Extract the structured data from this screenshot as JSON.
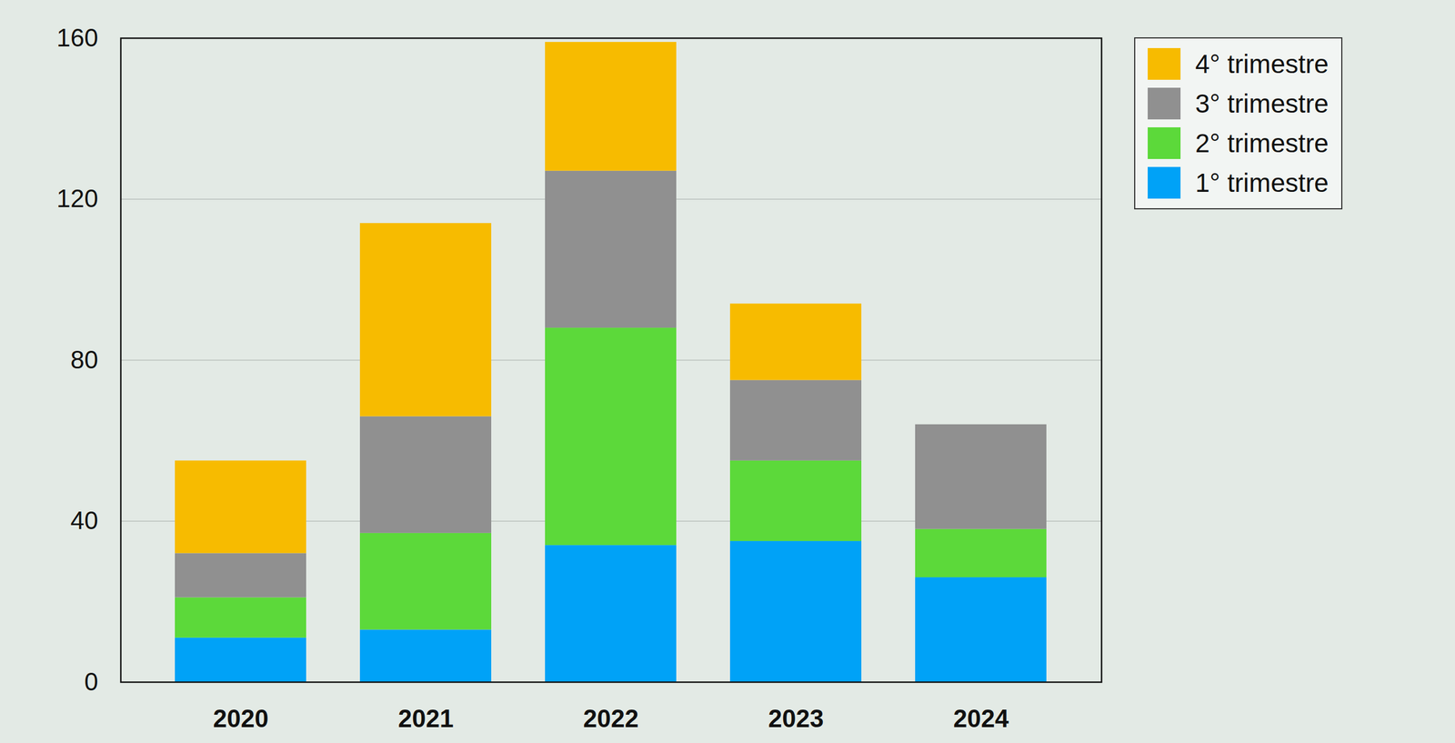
{
  "chart_data": {
    "type": "bar",
    "stacked": true,
    "categories": [
      "2020",
      "2021",
      "2022",
      "2023",
      "2024"
    ],
    "series": [
      {
        "name": "1° trimestre",
        "color": "#00a2f7",
        "values": [
          11,
          13,
          34,
          35,
          26
        ]
      },
      {
        "name": "2° trimestre",
        "color": "#5cd93a",
        "values": [
          10,
          24,
          54,
          20,
          12
        ]
      },
      {
        "name": "3° trimestre",
        "color": "#909090",
        "values": [
          11,
          29,
          39,
          20,
          26
        ]
      },
      {
        "name": "4° trimestre",
        "color": "#f7bb00",
        "values": [
          23,
          48,
          32,
          19,
          null
        ]
      }
    ],
    "ylim": [
      0,
      160
    ],
    "yticks": [
      0,
      40,
      80,
      120,
      160
    ],
    "grid": true,
    "legend": "top-right"
  }
}
